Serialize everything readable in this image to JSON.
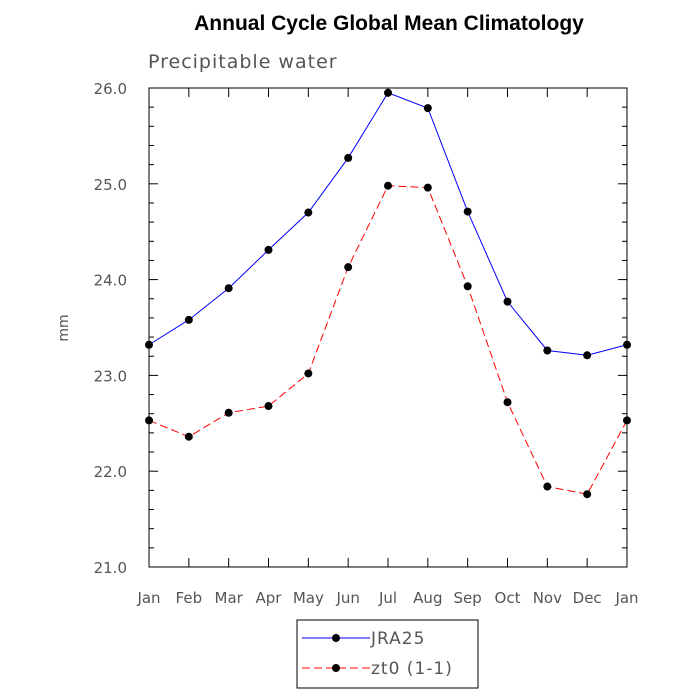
{
  "chart_data": {
    "type": "line",
    "title": "Annual Cycle Global Mean Climatology",
    "subtitle": "Precipitable water",
    "xlabel": "",
    "ylabel": "mm",
    "categories": [
      "Jan",
      "Feb",
      "Mar",
      "Apr",
      "May",
      "Jun",
      "Jul",
      "Aug",
      "Sep",
      "Oct",
      "Nov",
      "Dec",
      "Jan"
    ],
    "ylim": [
      21.0,
      26.0
    ],
    "yticks": [
      "21.0",
      "22.0",
      "23.0",
      "24.0",
      "25.0",
      "26.0"
    ],
    "grid": false,
    "legend_position": "bottom-center",
    "series": [
      {
        "name": "JRA25",
        "color": "#0000ff",
        "line_style": "solid",
        "values": [
          23.32,
          23.58,
          23.91,
          24.31,
          24.7,
          25.27,
          25.95,
          25.79,
          24.71,
          23.77,
          23.26,
          23.21,
          23.32
        ]
      },
      {
        "name": "zt0 (1-1)",
        "color": "#ff0000",
        "line_style": "dashed",
        "values": [
          22.53,
          22.36,
          22.61,
          22.68,
          23.02,
          24.13,
          24.98,
          24.96,
          23.93,
          22.72,
          21.84,
          21.76,
          22.53
        ]
      }
    ]
  }
}
